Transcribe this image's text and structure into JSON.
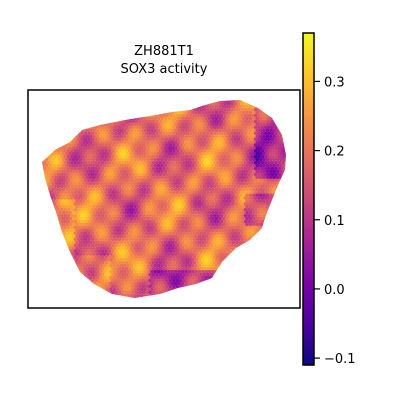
{
  "chart_data": {
    "type": "heatmap",
    "title_line1": "ZH881T1",
    "title_line2": "SOX3 activity",
    "colormap": "plasma",
    "colorbar": {
      "vmin": -0.11,
      "vmax": 0.37,
      "ticks": [
        -0.1,
        0.0,
        0.1,
        0.2,
        0.3
      ],
      "tick_labels": [
        "−0.1",
        "0.0",
        "0.1",
        "0.2",
        "0.3"
      ]
    },
    "grid": false,
    "axes_ticks": false
  }
}
